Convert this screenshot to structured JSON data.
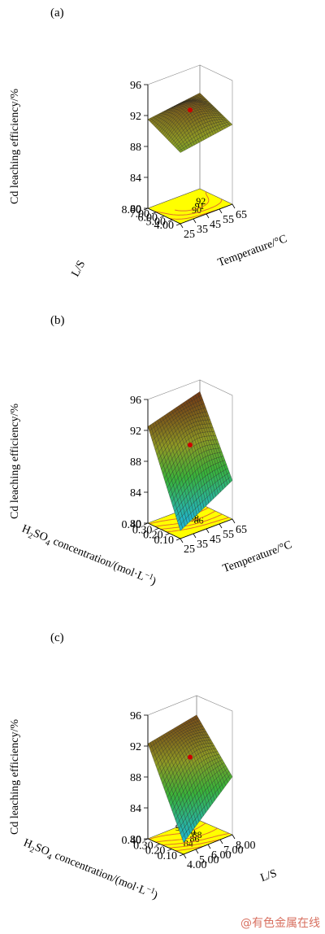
{
  "chart_data": [
    {
      "type": "surface3d",
      "panel_label": "(a)",
      "zlabel": "Cd leaching efficiency/%",
      "z_ticks": [
        "80",
        "84",
        "88",
        "92",
        "96"
      ],
      "zlim": [
        80,
        96
      ],
      "x_axis": {
        "label": "Temperature/°C",
        "ticks": [
          "25",
          "35",
          "45",
          "55",
          "65"
        ],
        "range": [
          25,
          65
        ]
      },
      "y_axis": {
        "label": "L/S",
        "ticks": [
          "4.00",
          "5.00",
          "6.00",
          "7.00",
          "8.00"
        ],
        "range": [
          4,
          8
        ]
      },
      "contour_levels": [
        "90",
        "91",
        "92",
        "93"
      ],
      "surface_corners": {
        "x_low_y_low": 89.2,
        "x_high_y_low": 90.3,
        "x_low_y_high": 91.5,
        "x_high_y_high": 92.4
      },
      "design_point": {
        "x": 45,
        "y": 6.0,
        "z": 93.5
      }
    },
    {
      "type": "surface3d",
      "panel_label": "(b)",
      "zlabel": "Cd leaching efficiency/%",
      "z_ticks": [
        "80",
        "84",
        "88",
        "92",
        "96"
      ],
      "zlim": [
        80,
        96
      ],
      "x_axis": {
        "label": "Temperature/°C",
        "ticks": [
          "25",
          "35",
          "45",
          "55",
          "65"
        ],
        "range": [
          25,
          65
        ]
      },
      "y_axis": {
        "label_main": "H",
        "label_sub1": "2",
        "label_mid": "SO",
        "label_sub2": "4",
        "label_rest": " concentration/(mol·L",
        "label_sup": "−1",
        "label_end": ")",
        "ticks": [
          "0.10",
          "0.20",
          "0.30",
          "0.40"
        ],
        "range": [
          0.1,
          0.4
        ]
      },
      "contour_levels": [
        "86",
        "88",
        "90",
        "92",
        "94"
      ],
      "surface_corners": {
        "x_low_y_low": 81.0,
        "x_high_y_low": 85.0,
        "x_low_y_high": 92.5,
        "x_high_y_high": 94.5
      },
      "design_point": {
        "x": 45,
        "y": 0.25,
        "z": 93.5
      }
    },
    {
      "type": "surface3d",
      "panel_label": "(c)",
      "zlabel": "Cd leaching efficiency/%",
      "z_ticks": [
        "80",
        "84",
        "88",
        "92",
        "96"
      ],
      "zlim": [
        80,
        96
      ],
      "x_axis": {
        "label": "L/S",
        "ticks": [
          "4.00",
          "5.00",
          "6.00",
          "7.00",
          "8.00"
        ],
        "range": [
          4,
          8
        ]
      },
      "y_axis": {
        "label_main": "H",
        "label_sub1": "2",
        "label_mid": "SO",
        "label_sub2": "4",
        "label_rest": " concentration/(mol·L",
        "label_sup": "−1",
        "label_end": ")",
        "ticks": [
          "0.10",
          "0.20",
          "0.30",
          "0.40"
        ],
        "range": [
          0.1,
          0.4
        ]
      },
      "contour_levels": [
        "84",
        "86",
        "88",
        "90",
        "92"
      ],
      "surface_corners": {
        "x_low_y_low": 81.5,
        "x_high_y_low": 87.5,
        "x_low_y_high": 92.3,
        "x_high_y_high": 93.5
      },
      "design_point": {
        "x": 6.0,
        "y": 0.25,
        "z": 93.5
      }
    }
  ],
  "colors": {
    "floor": "#ffff00",
    "surface_low": "#22b4c8",
    "surface_mid_low": "#39b23a",
    "surface_mid": "#8f9a24",
    "surface_high": "#6e2a12",
    "contour": "#e0702a",
    "design_point": "#cc0000"
  },
  "watermark": "@有色金属在线"
}
